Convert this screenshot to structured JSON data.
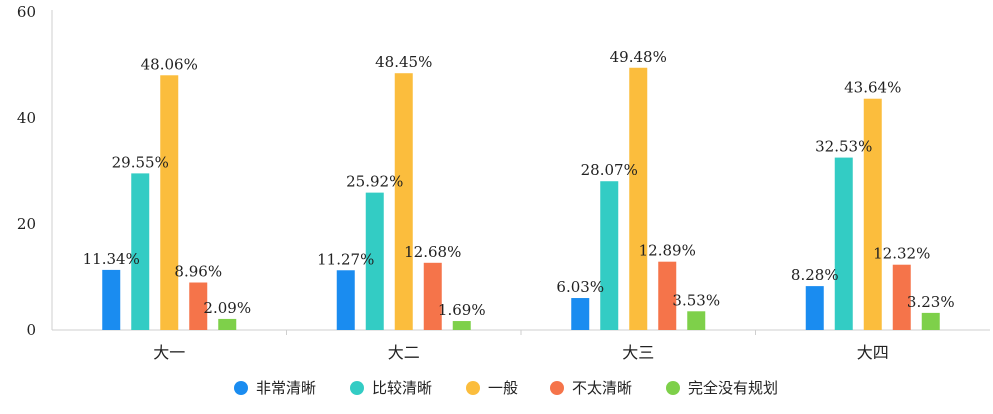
{
  "chart_data": {
    "type": "bar",
    "title": "",
    "xlabel": "",
    "ylabel": "",
    "ylim": [
      0,
      60
    ],
    "yticks": [
      0,
      20,
      40,
      60
    ],
    "grid": false,
    "legend_position": "bottom",
    "categories": [
      "大一",
      "大二",
      "大三",
      "大四"
    ],
    "series": [
      {
        "name": "非常清晰",
        "color": "#1a8cf0",
        "values": [
          11.34,
          11.27,
          6.03,
          8.28
        ],
        "labels": [
          "11.34%",
          "11.27%",
          "6.03%",
          "8.28%"
        ]
      },
      {
        "name": "比较清晰",
        "color": "#33ccc4",
        "values": [
          29.55,
          25.92,
          28.07,
          32.53
        ],
        "labels": [
          "29.55%",
          "25.92%",
          "28.07%",
          "32.53%"
        ]
      },
      {
        "name": "一般",
        "color": "#fbbd3d",
        "values": [
          48.06,
          48.45,
          49.48,
          43.64
        ],
        "labels": [
          "48.06%",
          "48.45%",
          "49.48%",
          "43.64%"
        ]
      },
      {
        "name": "不太清晰",
        "color": "#f5744a",
        "values": [
          8.96,
          12.68,
          12.89,
          12.32
        ],
        "labels": [
          "8.96%",
          "12.68%",
          "12.89%",
          "12.32%"
        ]
      },
      {
        "name": "完全没有规划",
        "color": "#7ed04a",
        "values": [
          2.09,
          1.69,
          3.53,
          3.23
        ],
        "labels": [
          "2.09%",
          "1.69%",
          "3.53%",
          "3.23%"
        ]
      }
    ]
  }
}
